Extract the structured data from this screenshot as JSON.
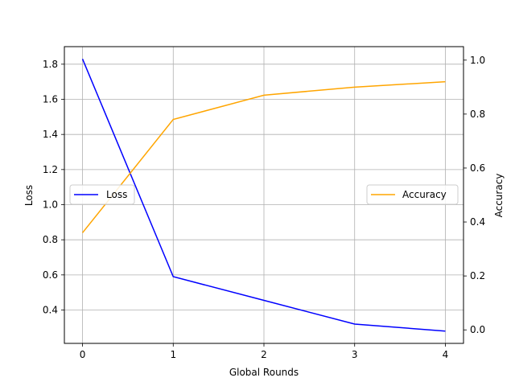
{
  "chart_data": {
    "type": "line",
    "x": [
      0,
      1,
      2,
      3,
      4
    ],
    "xlabel": "Global Rounds",
    "xlim": [
      -0.2,
      4.2
    ],
    "x_ticks": [
      0,
      1,
      2,
      3,
      4
    ],
    "grid": true,
    "series": [
      {
        "name": "Loss",
        "axis": "left",
        "color": "#0000ff",
        "values": [
          1.83,
          0.59,
          0.455,
          0.32,
          0.28
        ],
        "legend_position": "center-left"
      },
      {
        "name": "Accuracy",
        "axis": "right",
        "color": "#ffa500",
        "values": [
          0.36,
          0.78,
          0.87,
          0.9,
          0.92
        ],
        "legend_position": "center-right"
      }
    ],
    "y_left": {
      "label": "Loss",
      "lim": [
        0.21,
        1.9
      ],
      "ticks": [
        "0.4",
        "0.6",
        "0.8",
        "1.0",
        "1.2",
        "1.4",
        "1.6",
        "1.8"
      ]
    },
    "y_right": {
      "label": "Accuracy",
      "lim": [
        -0.05,
        1.05
      ],
      "ticks": [
        "0.0",
        "0.2",
        "0.4",
        "0.6",
        "0.8",
        "1.0"
      ]
    }
  }
}
